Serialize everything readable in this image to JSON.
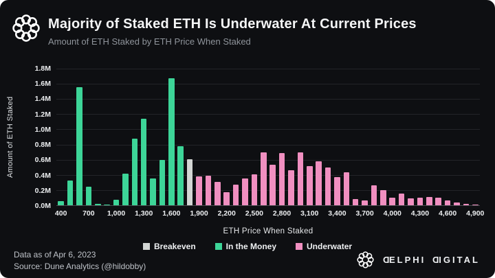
{
  "chart_data": {
    "type": "bar",
    "title": "Majority of Staked ETH Is Underwater At Current Prices",
    "subtitle": "Amount of ETH Staked by ETH Price When Staked",
    "xlabel": "ETH Price When Staked",
    "ylabel": "Amount of ETH Staked",
    "value_unit": "million ETH",
    "ylim": [
      0,
      1.8
    ],
    "ytick_labels_top_down": [
      "1.8M",
      "1.6M",
      "1.4M",
      "1.2M",
      "1.0M",
      "0.8M",
      "0.6M",
      "0.4M",
      "0.2M",
      "0.0M"
    ],
    "xtick_labels": [
      "400",
      "700",
      "1,000",
      "1,300",
      "1,600",
      "1,900",
      "2,200",
      "2,500",
      "2,800",
      "3,100",
      "3,400",
      "3,700",
      "4,000",
      "4,300",
      "4,600",
      "4,900"
    ],
    "xtick_every_n_bars": 3,
    "colors": {
      "breakeven": "#d3d6d4",
      "in_the_money": "#3dd598",
      "underwater": "#f08fc0"
    },
    "legend": [
      {
        "label": "Breakeven",
        "key": "breakeven"
      },
      {
        "label": "In the Money",
        "key": "in_the_money"
      },
      {
        "label": "Underwater",
        "key": "underwater"
      }
    ],
    "legend_position": "bottom-center",
    "grid": "horizontal",
    "bars": [
      {
        "price": 400,
        "value": 0.05,
        "status": "in_the_money"
      },
      {
        "price": 500,
        "value": 0.33,
        "status": "in_the_money"
      },
      {
        "price": 600,
        "value": 1.56,
        "status": "in_the_money"
      },
      {
        "price": 700,
        "value": 0.24,
        "status": "in_the_money"
      },
      {
        "price": 800,
        "value": 0.02,
        "status": "in_the_money"
      },
      {
        "price": 900,
        "value": 0.01,
        "status": "in_the_money"
      },
      {
        "price": 1000,
        "value": 0.07,
        "status": "in_the_money"
      },
      {
        "price": 1100,
        "value": 0.42,
        "status": "in_the_money"
      },
      {
        "price": 1200,
        "value": 0.88,
        "status": "in_the_money"
      },
      {
        "price": 1300,
        "value": 1.14,
        "status": "in_the_money"
      },
      {
        "price": 1400,
        "value": 0.35,
        "status": "in_the_money"
      },
      {
        "price": 1500,
        "value": 0.6,
        "status": "in_the_money"
      },
      {
        "price": 1600,
        "value": 1.67,
        "status": "in_the_money"
      },
      {
        "price": 1700,
        "value": 0.78,
        "status": "in_the_money"
      },
      {
        "price": 1800,
        "value": 0.61,
        "status": "breakeven"
      },
      {
        "price": 1900,
        "value": 0.38,
        "status": "underwater"
      },
      {
        "price": 2000,
        "value": 0.39,
        "status": "underwater"
      },
      {
        "price": 2100,
        "value": 0.31,
        "status": "underwater"
      },
      {
        "price": 2200,
        "value": 0.17,
        "status": "underwater"
      },
      {
        "price": 2300,
        "value": 0.27,
        "status": "underwater"
      },
      {
        "price": 2400,
        "value": 0.35,
        "status": "underwater"
      },
      {
        "price": 2500,
        "value": 0.41,
        "status": "underwater"
      },
      {
        "price": 2600,
        "value": 0.7,
        "status": "underwater"
      },
      {
        "price": 2700,
        "value": 0.53,
        "status": "underwater"
      },
      {
        "price": 2800,
        "value": 0.69,
        "status": "underwater"
      },
      {
        "price": 2900,
        "value": 0.46,
        "status": "underwater"
      },
      {
        "price": 3000,
        "value": 0.7,
        "status": "underwater"
      },
      {
        "price": 3100,
        "value": 0.52,
        "status": "underwater"
      },
      {
        "price": 3200,
        "value": 0.58,
        "status": "underwater"
      },
      {
        "price": 3300,
        "value": 0.5,
        "status": "underwater"
      },
      {
        "price": 3400,
        "value": 0.37,
        "status": "underwater"
      },
      {
        "price": 3500,
        "value": 0.43,
        "status": "underwater"
      },
      {
        "price": 3600,
        "value": 0.08,
        "status": "underwater"
      },
      {
        "price": 3700,
        "value": 0.06,
        "status": "underwater"
      },
      {
        "price": 3800,
        "value": 0.26,
        "status": "underwater"
      },
      {
        "price": 3900,
        "value": 0.2,
        "status": "underwater"
      },
      {
        "price": 4000,
        "value": 0.1,
        "status": "underwater"
      },
      {
        "price": 4100,
        "value": 0.15,
        "status": "underwater"
      },
      {
        "price": 4200,
        "value": 0.09,
        "status": "underwater"
      },
      {
        "price": 4300,
        "value": 0.1,
        "status": "underwater"
      },
      {
        "price": 4400,
        "value": 0.11,
        "status": "underwater"
      },
      {
        "price": 4500,
        "value": 0.1,
        "status": "underwater"
      },
      {
        "price": 4600,
        "value": 0.06,
        "status": "underwater"
      },
      {
        "price": 4700,
        "value": 0.04,
        "status": "underwater"
      },
      {
        "price": 4800,
        "value": 0.015,
        "status": "underwater"
      },
      {
        "price": 4900,
        "value": 0.005,
        "status": "underwater"
      }
    ]
  },
  "footer": {
    "data_as_of": "Data as of Apr 6, 2023",
    "source": "Source: Dune Analytics (@hildobby)",
    "brand": "DELPHI DIGITAL"
  }
}
